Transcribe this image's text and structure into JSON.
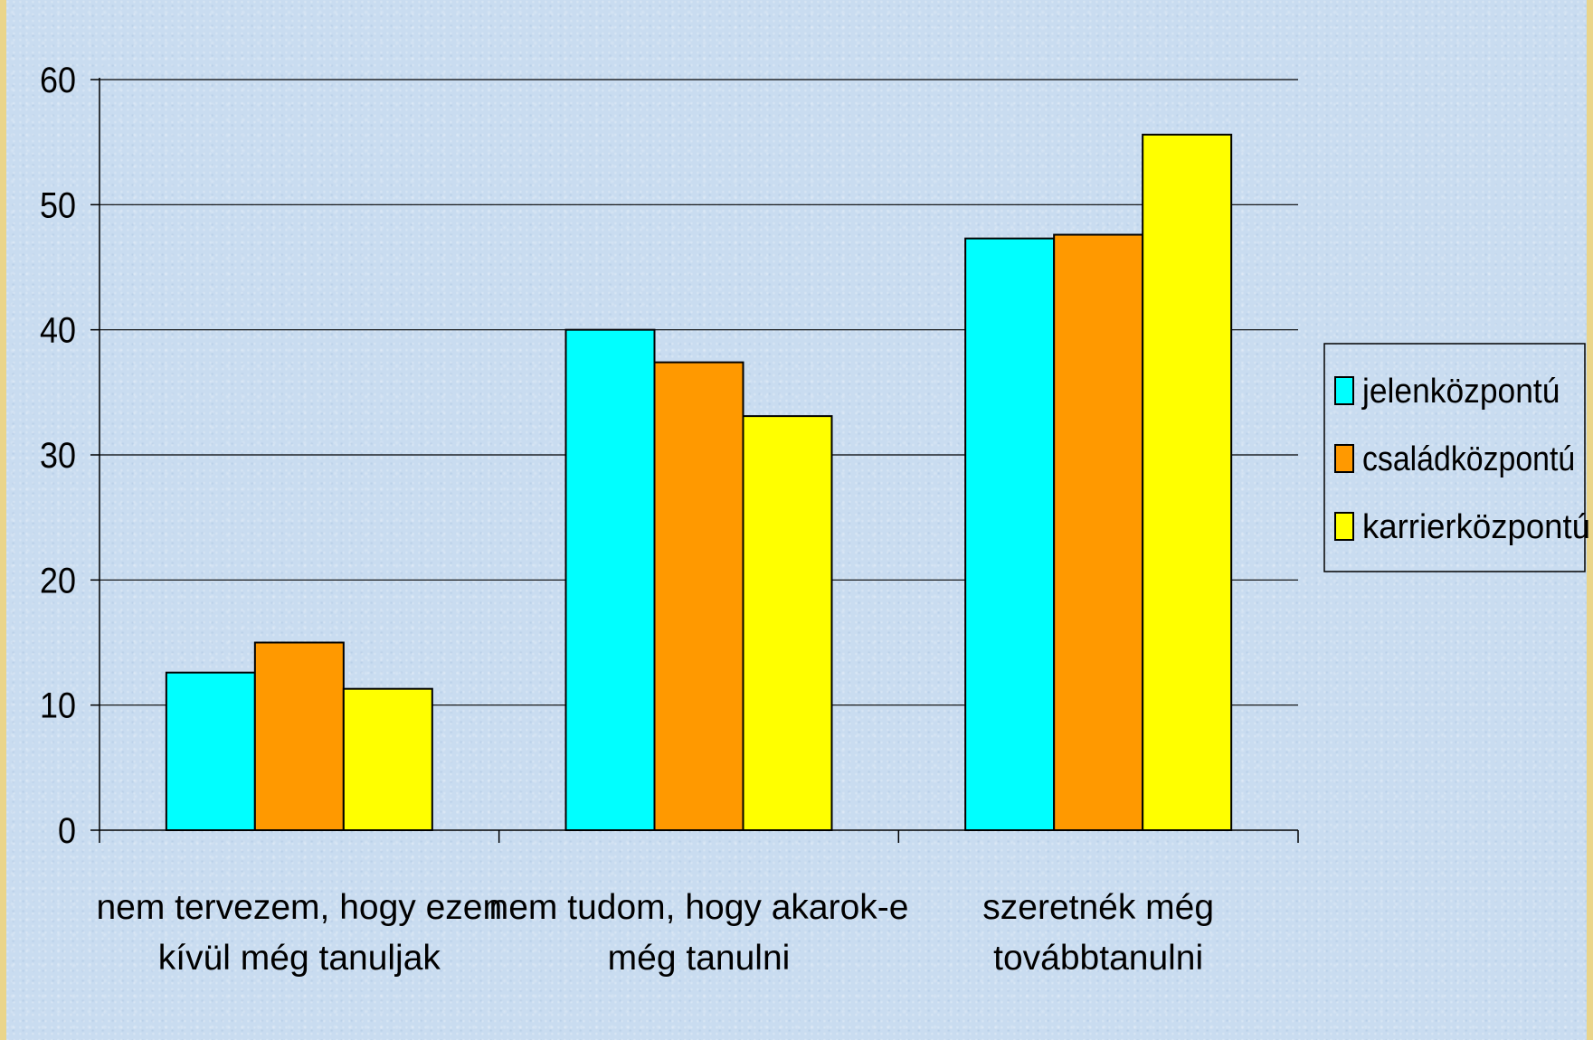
{
  "chart_data": {
    "type": "bar",
    "categories": [
      [
        "nem tervezem, hogy ezen",
        "kívül még tanuljak"
      ],
      [
        "nem tudom, hogy akarok-e",
        "még tanulni"
      ],
      [
        "szeretnék még",
        "továbbtanulni"
      ]
    ],
    "series": [
      {
        "name": "jelenközpontú",
        "color": "#00ffff",
        "values": [
          12.6,
          40.0,
          47.3
        ]
      },
      {
        "name": "családközpontú",
        "color": "#ff9900",
        "values": [
          15.0,
          37.4,
          47.6
        ]
      },
      {
        "name": "karrierközpontú",
        "color": "#ffff00",
        "values": [
          11.3,
          33.1,
          55.6
        ]
      }
    ],
    "title": "",
    "xlabel": "",
    "ylabel": "",
    "ylim": [
      0,
      60
    ],
    "yticks": [
      "0",
      "10",
      "20",
      "30",
      "40",
      "50",
      "60"
    ],
    "grid": true,
    "legend_position": "right"
  }
}
